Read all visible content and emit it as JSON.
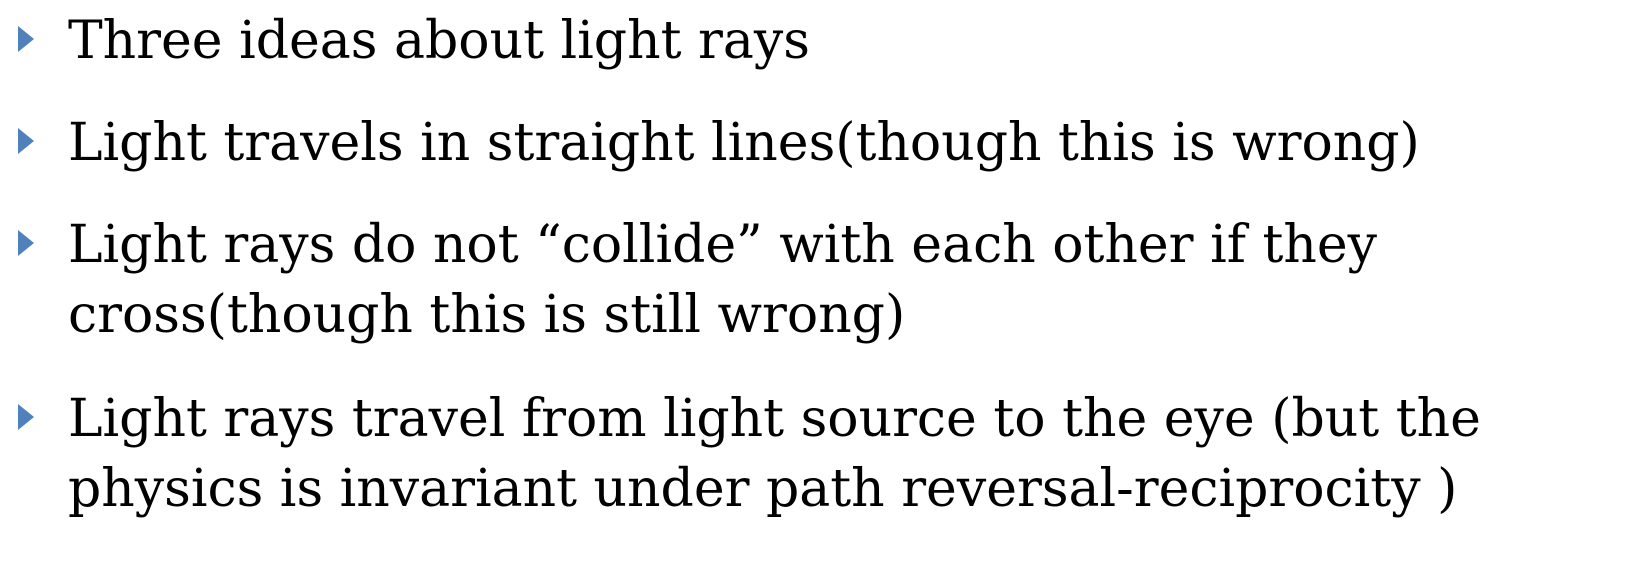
{
  "slide": {
    "bullets": [
      {
        "text": "Three ideas about light rays"
      },
      {
        "text": "Light travels in straight lines(though this is wrong)"
      },
      {
        "text": "Light rays do not “collide” with each other if they cross(though this is still wrong)"
      },
      {
        "text": "Light rays travel from light source to the eye (but the physics is invariant under path reversal-reciprocity )"
      }
    ],
    "bullet_color": "#4f81bd",
    "text_color": "#000000",
    "background": "#ffffff"
  }
}
